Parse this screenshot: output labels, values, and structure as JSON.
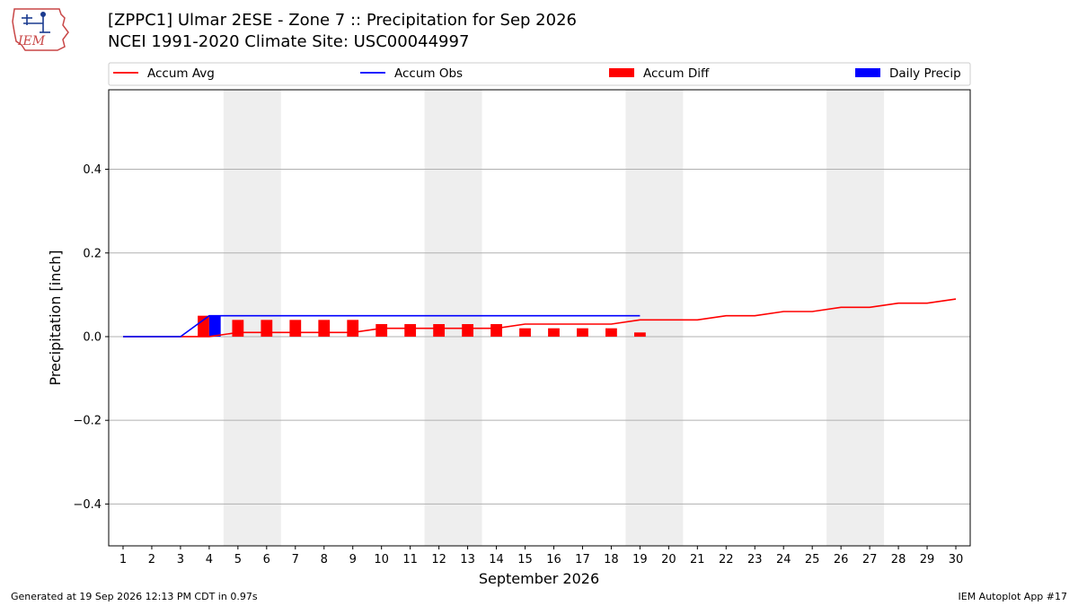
{
  "header": {
    "title_line1": "[ZPPC1] Ulmar 2ESE - Zone 7 :: Precipitation for Sep 2026",
    "title_line2": "NCEI 1991-2020 Climate Site: USC00044997",
    "logo_text": "IEM"
  },
  "footer": {
    "generated": "Generated at 19 Sep 2026 12:13 PM CDT in 0.97s",
    "app": "IEM Autoplot App #17"
  },
  "colors": {
    "accum_avg": "#ff0000",
    "accum_obs": "#0000ff",
    "accum_diff": "#ff0000",
    "daily_precip": "#0000ff",
    "weekend_shade": "#eeeeee",
    "grid": "#b0b0b0"
  },
  "chart_data": {
    "type": "bar",
    "xlabel": "September 2026",
    "ylabel": "Precipitation [inch]",
    "ylim": [
      -0.5,
      0.59
    ],
    "xlim": [
      0.5,
      30.5
    ],
    "yticks": [
      -0.4,
      -0.2,
      0.0,
      0.2,
      0.4
    ],
    "ytick_labels": [
      "−0.4",
      "−0.2",
      "0.0",
      "0.2",
      "0.4"
    ],
    "x_ticks": [
      1,
      2,
      3,
      4,
      5,
      6,
      7,
      8,
      9,
      10,
      11,
      12,
      13,
      14,
      15,
      16,
      17,
      18,
      19,
      20,
      21,
      22,
      23,
      24,
      25,
      26,
      27,
      28,
      29,
      30
    ],
    "grid": "horizontal",
    "legend_position": "top",
    "weekend_shading": [
      [
        5,
        6
      ],
      [
        12,
        13
      ],
      [
        19,
        20
      ],
      [
        26,
        27
      ]
    ],
    "series": [
      {
        "name": "Accum Avg",
        "kind": "line",
        "x": [
          1,
          2,
          3,
          4,
          5,
          6,
          7,
          8,
          9,
          10,
          11,
          12,
          13,
          14,
          15,
          16,
          17,
          18,
          19,
          20,
          21,
          22,
          23,
          24,
          25,
          26,
          27,
          28,
          29,
          30
        ],
        "values": [
          0.0,
          0.0,
          0.0,
          0.0,
          0.01,
          0.01,
          0.01,
          0.01,
          0.01,
          0.02,
          0.02,
          0.02,
          0.02,
          0.02,
          0.03,
          0.03,
          0.03,
          0.03,
          0.04,
          0.04,
          0.04,
          0.05,
          0.05,
          0.06,
          0.06,
          0.07,
          0.07,
          0.08,
          0.08,
          0.09
        ]
      },
      {
        "name": "Accum Obs",
        "kind": "line",
        "x": [
          1,
          2,
          3,
          4,
          5,
          6,
          7,
          8,
          9,
          10,
          11,
          12,
          13,
          14,
          15,
          16,
          17,
          18,
          19
        ],
        "values": [
          0.0,
          0.0,
          0.0,
          0.05,
          0.05,
          0.05,
          0.05,
          0.05,
          0.05,
          0.05,
          0.05,
          0.05,
          0.05,
          0.05,
          0.05,
          0.05,
          0.05,
          0.05,
          0.05
        ]
      },
      {
        "name": "Accum Diff",
        "kind": "bar",
        "x": [
          1,
          2,
          3,
          4,
          5,
          6,
          7,
          8,
          9,
          10,
          11,
          12,
          13,
          14,
          15,
          16,
          17,
          18,
          19
        ],
        "values": [
          0.0,
          0.0,
          0.0,
          0.05,
          0.04,
          0.04,
          0.04,
          0.04,
          0.04,
          0.03,
          0.03,
          0.03,
          0.03,
          0.03,
          0.02,
          0.02,
          0.02,
          0.02,
          0.01
        ]
      },
      {
        "name": "Daily Precip",
        "kind": "bar",
        "x": [
          4
        ],
        "values": [
          0.05
        ]
      }
    ]
  }
}
